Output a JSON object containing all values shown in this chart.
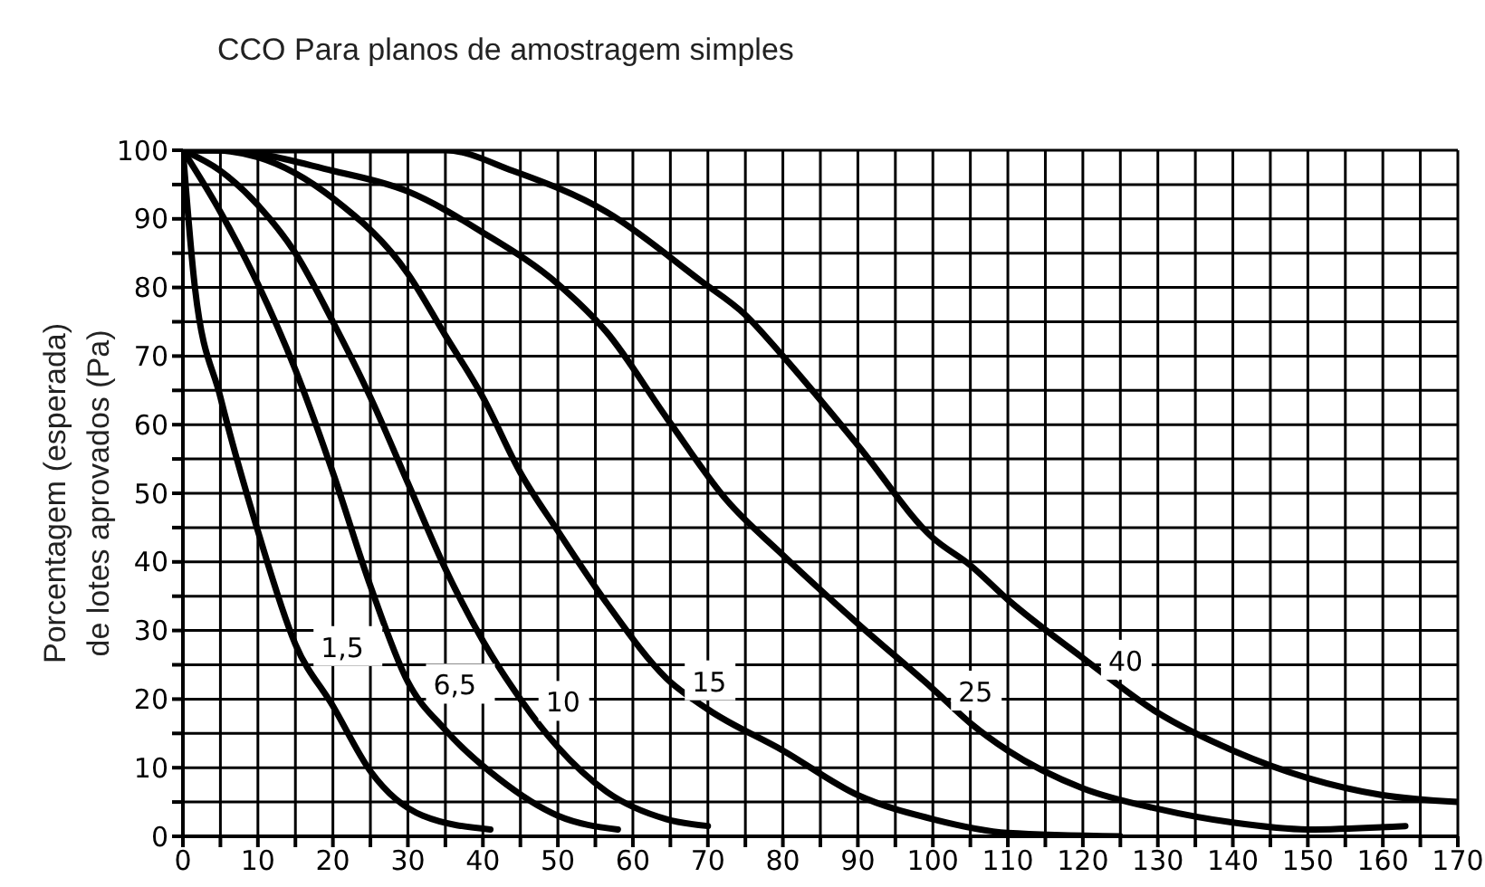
{
  "chart_data": {
    "type": "line",
    "title": "CCO Para planos de amostragem simples",
    "ylabel": "Porcentagem (esperada) de lotes aprovados (Pa)",
    "xlim": [
      0,
      170
    ],
    "ylim": [
      0,
      100
    ],
    "xticks": [
      0,
      {
        "value": 5,
        "label": null
      },
      10,
      {
        "value": 15,
        "label": null
      },
      20,
      {
        "value": 25,
        "label": null
      },
      30,
      {
        "value": 35,
        "label": null
      },
      40,
      {
        "value": 45,
        "label": null
      },
      50,
      {
        "value": 55,
        "label": null
      },
      60,
      {
        "value": 65,
        "label": null
      },
      70,
      {
        "value": 75,
        "label": null
      },
      80,
      {
        "value": 85,
        "label": null
      },
      90,
      {
        "value": 95,
        "label": null
      },
      100,
      {
        "value": 105,
        "label": null
      },
      110,
      {
        "value": 115,
        "label": null
      },
      120,
      {
        "value": 125,
        "label": null
      },
      130,
      {
        "value": 135,
        "label": null
      },
      140,
      {
        "value": 145,
        "label": null
      },
      150,
      {
        "value": 155,
        "label": null
      },
      160,
      {
        "value": 165,
        "label": null
      },
      170
    ],
    "yticks": [
      0,
      {
        "value": 5,
        "label": null
      },
      10,
      {
        "value": 15,
        "label": null
      },
      20,
      {
        "value": 25,
        "label": null
      },
      30,
      {
        "value": 35,
        "label": null
      },
      40,
      {
        "value": 45,
        "label": null
      },
      50,
      {
        "value": 55,
        "label": null
      },
      60,
      {
        "value": 65,
        "label": null
      },
      70,
      {
        "value": 75,
        "label": null
      },
      80,
      {
        "value": 85,
        "label": null
      },
      90,
      {
        "value": 95,
        "label": null
      },
      100
    ],
    "grid": true,
    "legend": false,
    "marker": "none",
    "line_style": "solid",
    "series": [
      {
        "name": "1,5",
        "color": "#000000",
        "x": [
          0,
          1.6,
          5,
          10,
          15,
          20,
          25,
          32,
          41
        ],
        "values": [
          100,
          80,
          64,
          44.5,
          28,
          19,
          9.5,
          3,
          1
        ]
      },
      {
        "name": "6,5",
        "color": "#000000",
        "x": [
          0,
          5,
          10,
          15,
          20,
          25,
          30,
          35,
          42,
          50,
          58
        ],
        "values": [
          100,
          91,
          80.5,
          68,
          53,
          36.5,
          22.5,
          15.5,
          8.5,
          3,
          1
        ]
      },
      {
        "name": "10",
        "color": "#000000",
        "x": [
          0,
          5,
          10,
          15,
          20,
          25,
          30,
          35,
          40,
          45,
          50,
          56.5,
          64.5,
          70
        ],
        "values": [
          100,
          97,
          92,
          85,
          75,
          64,
          51.5,
          39,
          28.5,
          20,
          13,
          6.5,
          2.5,
          1.5
        ]
      },
      {
        "name": "15",
        "color": "#000000",
        "x": [
          0,
          4,
          10,
          20,
          30,
          35,
          40,
          45,
          50,
          56.5,
          64.5,
          70,
          80,
          90,
          100,
          110,
          125
        ],
        "values": [
          100,
          100,
          99,
          93,
          82,
          73,
          64,
          53,
          44.5,
          34,
          23,
          18.5,
          12.5,
          6,
          2.5,
          0.5,
          0
        ]
      },
      {
        "name": "25",
        "color": "#000000",
        "x": [
          0,
          5,
          20,
          30,
          40,
          50,
          56.5,
          64.5,
          72.5,
          80,
          90,
          100,
          105,
          110,
          120,
          130,
          140,
          150,
          163
        ],
        "values": [
          100,
          100,
          97,
          94,
          88,
          80.5,
          73.5,
          61,
          49,
          41,
          31,
          21.5,
          16.5,
          12.5,
          7,
          4,
          2,
          1,
          1.5
        ]
      },
      {
        "name": "40",
        "color": "#000000",
        "x": [
          0,
          35,
          44,
          56.5,
          69,
          75,
          80,
          90,
          100,
          105,
          110,
          120,
          130,
          140,
          150,
          160,
          170
        ],
        "values": [
          100,
          100,
          97,
          91,
          81,
          76,
          70,
          57,
          43.5,
          39.5,
          34.5,
          26,
          18,
          12.5,
          8.5,
          6,
          5
        ]
      }
    ]
  }
}
